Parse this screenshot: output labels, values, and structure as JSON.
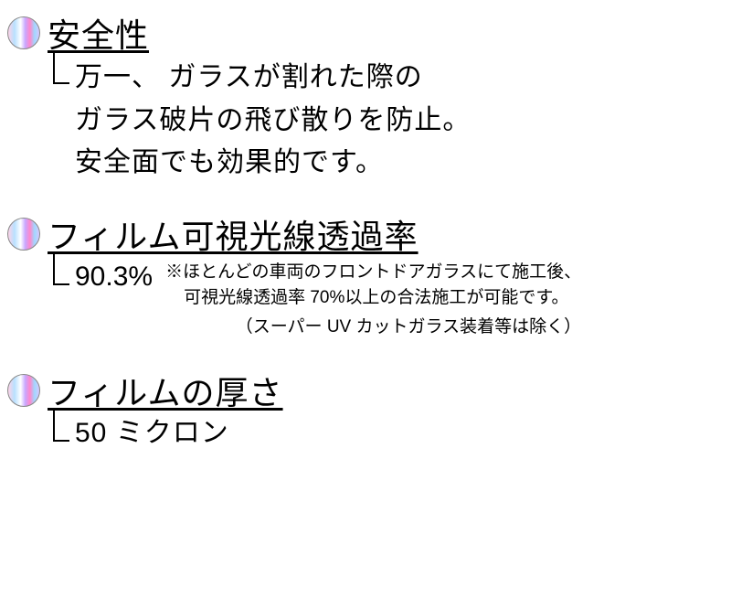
{
  "bullet_gradient": "linear-gradient(90deg, #ffd4e8 0%, #b8e0ff 20%, #ffffff 40%, #c8a8ff 55%, #ff88cc 70%, #a0d8ff 85%, #d8c8ff 100%)",
  "sections": {
    "safety": {
      "title": "安全性",
      "lines": {
        "l1": "万一、 ガラスが割れた際の",
        "l2": "ガラス破片の飛び散りを防止。",
        "l3": "安全面でも効果的です。"
      }
    },
    "transmittance": {
      "title": "フィルム可視光線透過率",
      "value": "90.3%",
      "note1": "※ほとんどの車両のフロントドアガラスにて施工後、",
      "note2": "可視光線透過率 70%以上の合法施工が可能です。",
      "note3": "（スーパー UV カットガラス装着等は除く）"
    },
    "thickness": {
      "title": "フィルムの厚さ",
      "value": "50 ミクロン"
    }
  },
  "colors": {
    "text": "#000000",
    "background": "#ffffff"
  },
  "typography": {
    "title_fontsize": 36,
    "body_fontsize": 30,
    "note_fontsize": 19
  }
}
